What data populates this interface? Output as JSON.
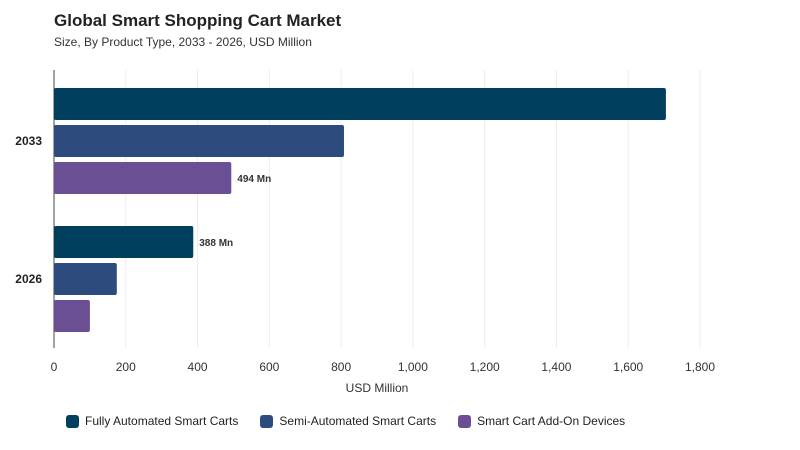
{
  "header": {
    "title": "Global Smart Shopping Cart Market",
    "subtitle": "Size, By Product Type, 2033 - 2026, USD Million"
  },
  "chart_data": {
    "type": "bar",
    "orientation": "horizontal",
    "categories": [
      "2033",
      "2026"
    ],
    "series": [
      {
        "name": "Fully Automated Smart Carts",
        "color": "#00405e",
        "values": [
          1705,
          388
        ]
      },
      {
        "name": "Semi-Automated Smart Carts",
        "color": "#2d4b7c",
        "values": [
          808,
          175
        ]
      },
      {
        "name": "Smart Cart Add-On Devices",
        "color": "#6a4f95",
        "values": [
          494,
          100
        ]
      }
    ],
    "data_labels": [
      {
        "category": "2033",
        "series": "Smart Cart Add-On Devices",
        "text": "494 Mn"
      },
      {
        "category": "2026",
        "series": "Fully Automated Smart Carts",
        "text": "388 Mn"
      }
    ],
    "xlabel": "USD Million",
    "xlim": [
      0,
      1800
    ],
    "xticks": [
      "0",
      "200",
      "400",
      "600",
      "800",
      "1,000",
      "1,200",
      "1,400",
      "1,600",
      "1,800"
    ],
    "grid": true,
    "legend_position": "bottom-left"
  }
}
